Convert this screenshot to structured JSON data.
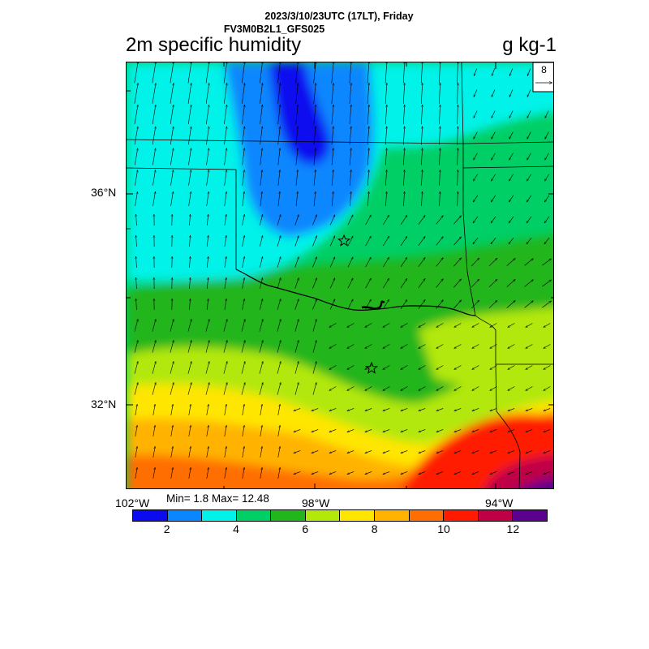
{
  "header": {
    "line1": "2023/3/10/23UTC (17LT), Friday",
    "line2": "FV3M0B2L1_GFS025"
  },
  "title": "2m specific humidity",
  "units": "g kg-1",
  "vector_reference": {
    "value": "8"
  },
  "axes": {
    "lat_labels": [
      "36°N",
      "32°N"
    ],
    "lon_labels": [
      "102°W",
      "98°W",
      "94°W"
    ]
  },
  "stats": {
    "text": "Min= 1.8 Max= 12.48",
    "min": 1.8,
    "max": 12.48
  },
  "colorbar": {
    "colors": [
      "#0b0bf0",
      "#0a87ff",
      "#00f2e8",
      "#00cf66",
      "#22b51c",
      "#b2e80a",
      "#ffe600",
      "#ffb300",
      "#ff6e00",
      "#ff1a00",
      "#bf0046",
      "#5c0090"
    ],
    "tick_labels": [
      "2",
      "4",
      "6",
      "8",
      "10",
      "12"
    ]
  },
  "map": {
    "markers": [
      "star",
      "star"
    ],
    "field": "2m specific humidity"
  }
}
